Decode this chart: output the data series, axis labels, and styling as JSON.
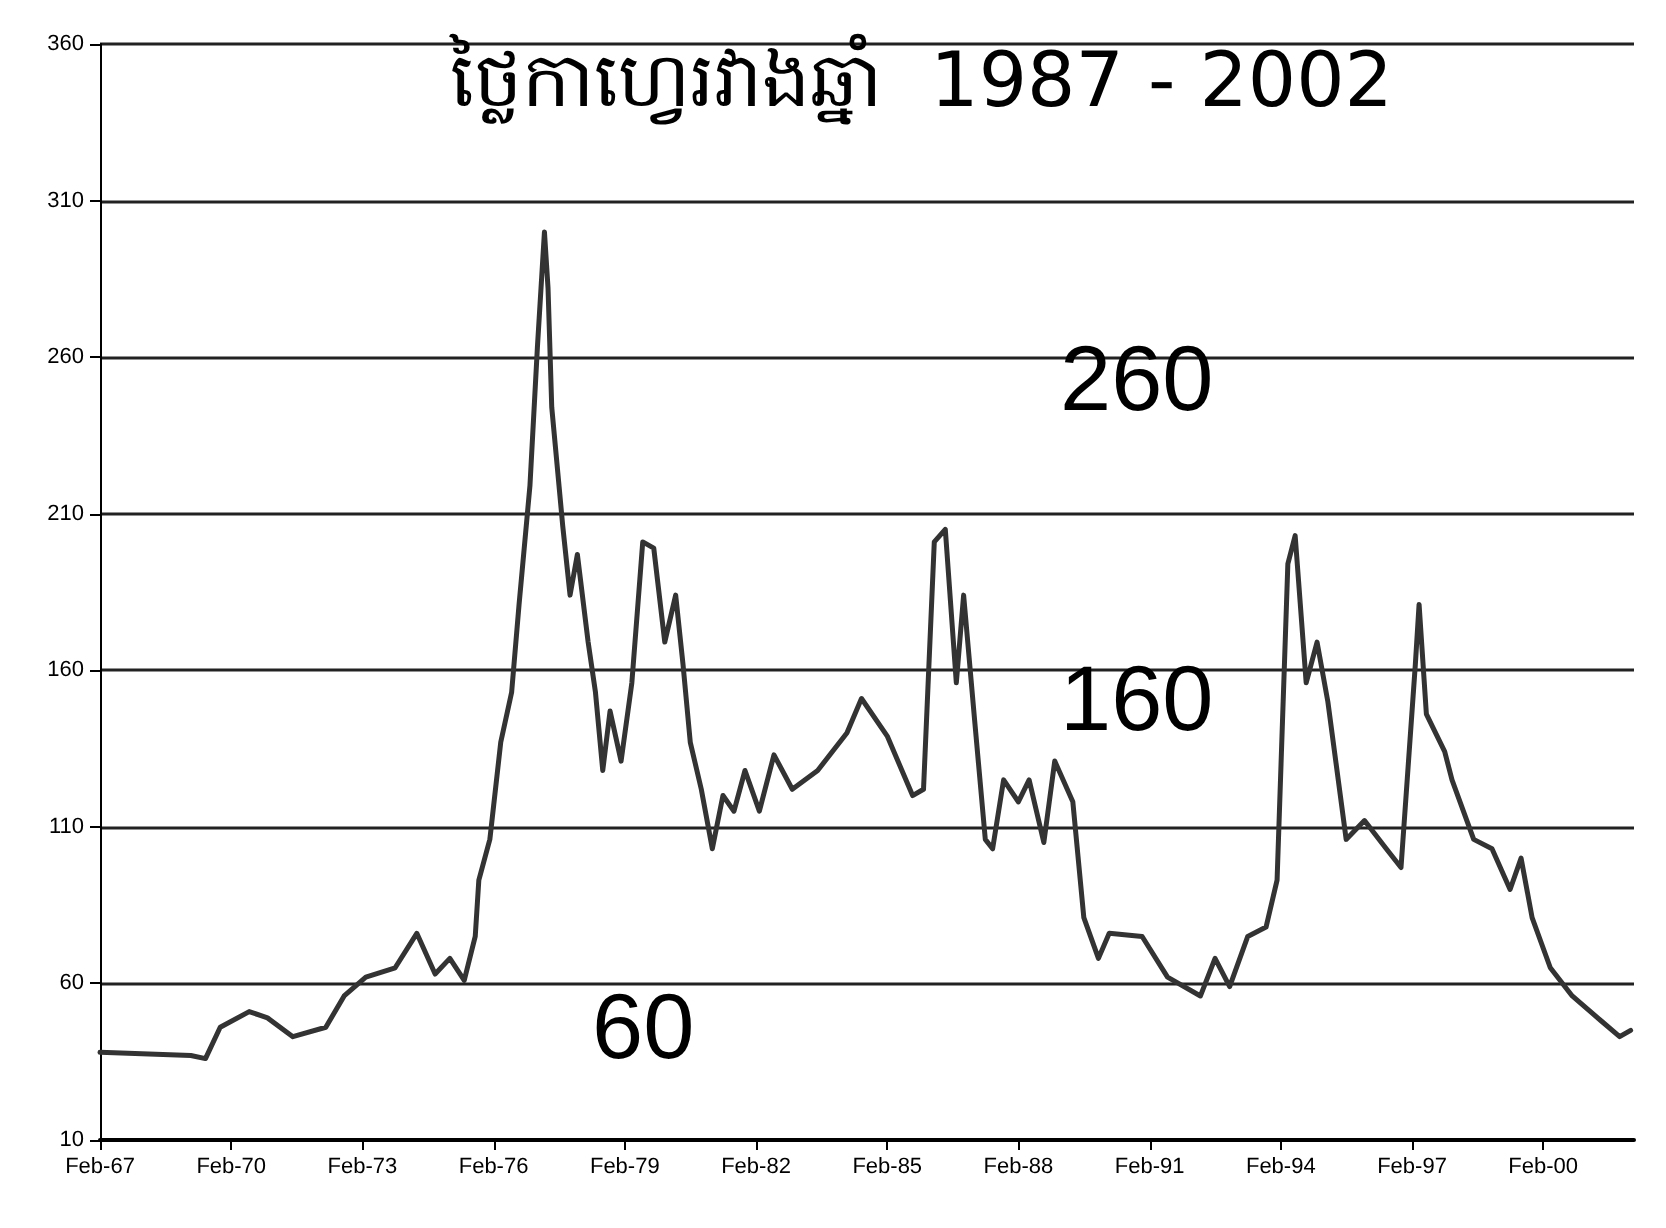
{
  "chart_data": {
    "type": "line",
    "title": "ថ្លៃកាហ្វេរវាងឆ្នាំ  1987 - 2002",
    "x": [
      "1967-02",
      "1969-03",
      "1969-07",
      "1969-11",
      "1970-07",
      "1970-12",
      "1971-07",
      "1972-04",
      "1972-09",
      "1973-03",
      "1973-11",
      "1974-05",
      "1974-10",
      "1975-02",
      "1975-06",
      "1975-09",
      "1975-10",
      "1976-01",
      "1976-04",
      "1976-07",
      "1976-09",
      "1976-12",
      "1977-02",
      "1977-04",
      "1977-05",
      "1977-06",
      "1977-09",
      "1977-11",
      "1978-01",
      "1978-04",
      "1978-06",
      "1978-08",
      "1978-10",
      "1979-01",
      "1979-04",
      "1979-07",
      "1979-10",
      "1980-01",
      "1980-04",
      "1980-06",
      "1980-08",
      "1980-11",
      "1981-02",
      "1981-05",
      "1981-08",
      "1981-11",
      "1982-03",
      "1982-07",
      "1982-12",
      "1983-07",
      "1984-03",
      "1984-07",
      "1985-02",
      "1985-09",
      "1985-12",
      "1986-03",
      "1986-06",
      "1986-09",
      "1986-11",
      "1987-02",
      "1987-05",
      "1987-07",
      "1987-10",
      "1988-02",
      "1988-05",
      "1988-09",
      "1988-12",
      "1989-05",
      "1989-08",
      "1989-12",
      "1990-03",
      "1990-12",
      "1991-07",
      "1992-04",
      "1992-08",
      "1992-12",
      "1993-05",
      "1993-10",
      "1994-01",
      "1994-04",
      "1994-06",
      "1994-09",
      "1994-12",
      "1995-03",
      "1995-08",
      "1996-01",
      "1996-07",
      "1996-11",
      "1997-03",
      "1997-04",
      "1997-06",
      "1997-11",
      "1998-01",
      "1998-07",
      "1998-12",
      "1999-05",
      "1999-08",
      "1999-11",
      "2000-04",
      "2000-10",
      "2001-06",
      "2001-11",
      "2002-02"
    ],
    "series": [
      {
        "color": "#333333",
        "values": [
          38,
          37,
          36,
          46,
          51,
          49,
          43,
          46,
          56,
          62,
          65,
          76,
          63,
          68,
          61,
          75,
          93,
          106,
          137,
          153,
          181,
          219,
          263,
          300,
          282,
          244,
          206,
          184,
          197,
          169,
          153,
          128,
          147,
          131,
          156,
          201,
          199,
          169,
          184,
          162,
          137,
          122,
          103,
          120,
          115,
          128,
          115,
          133,
          122,
          128,
          140,
          151,
          139,
          120,
          122,
          201,
          205,
          156,
          184,
          144,
          106,
          103,
          125,
          118,
          125,
          105,
          131,
          118,
          81,
          68,
          76,
          75,
          62,
          56,
          68,
          59,
          75,
          78,
          93,
          194,
          203,
          156,
          169,
          150,
          106,
          112,
          103,
          97,
          162,
          181,
          146,
          134,
          125,
          106,
          103,
          90,
          100,
          81,
          65,
          56,
          48,
          43,
          45
        ]
      }
    ],
    "xlim": [
      "1967-02",
      "2002-03"
    ],
    "xticks": [
      {
        "value": "1967-02",
        "label": "Feb-67"
      },
      {
        "value": "1970-02",
        "label": "Feb-70"
      },
      {
        "value": "1973-02",
        "label": "Feb-73"
      },
      {
        "value": "1976-02",
        "label": "Feb-76"
      },
      {
        "value": "1979-02",
        "label": "Feb-79"
      },
      {
        "value": "1982-02",
        "label": "Feb-82"
      },
      {
        "value": "1985-02",
        "label": "Feb-85"
      },
      {
        "value": "1988-02",
        "label": "Feb-88"
      },
      {
        "value": "1991-02",
        "label": "Feb-91"
      },
      {
        "value": "1994-02",
        "label": "Feb-94"
      },
      {
        "value": "1997-02",
        "label": "Feb-97"
      },
      {
        "value": "2000-02",
        "label": "Feb-00"
      }
    ],
    "ylim": [
      10,
      360
    ],
    "yticks": [
      10,
      60,
      110,
      160,
      210,
      260,
      310,
      360
    ],
    "grid": "y",
    "marker": "none",
    "line_style": "solid",
    "annotations": [
      "260",
      "160",
      "60"
    ]
  }
}
